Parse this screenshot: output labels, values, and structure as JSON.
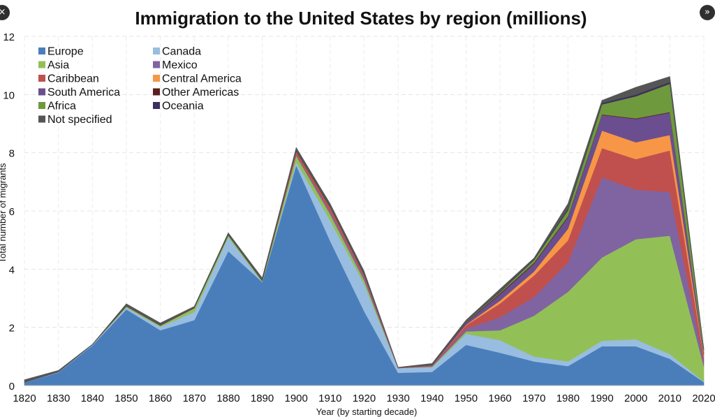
{
  "ui": {
    "close_glyph": "×",
    "next_glyph": "»"
  },
  "chart_data": {
    "type": "area",
    "stacked": true,
    "title": "Immigration to the United States by region (millions)",
    "xlabel": "Year (by starting decade)",
    "ylabel": "Total number of migrants",
    "ylim": [
      0,
      12
    ],
    "yticks": [
      0,
      2,
      4,
      6,
      8,
      10,
      12
    ],
    "grid": true,
    "legend_position": "top-left",
    "x": [
      1820,
      1830,
      1840,
      1850,
      1860,
      1870,
      1880,
      1890,
      1900,
      1910,
      1920,
      1930,
      1940,
      1950,
      1960,
      1970,
      1980,
      1990,
      2000,
      2010,
      2020
    ],
    "series": [
      {
        "name": "Europe",
        "color": "#4a7ebb",
        "values": [
          0.1,
          0.45,
          1.38,
          2.62,
          1.9,
          2.25,
          4.62,
          3.56,
          7.57,
          4.97,
          2.56,
          0.44,
          0.47,
          1.4,
          1.13,
          0.83,
          0.67,
          1.35,
          1.35,
          0.92,
          0.12
        ]
      },
      {
        "name": "Canada",
        "color": "#98bde0",
        "values": [
          0.01,
          0.02,
          0.03,
          0.06,
          0.12,
          0.28,
          0.48,
          0.0,
          0.12,
          0.71,
          0.93,
          0.16,
          0.16,
          0.38,
          0.43,
          0.17,
          0.16,
          0.19,
          0.24,
          0.16,
          0.02
        ]
      },
      {
        "name": "Asia",
        "color": "#92c057",
        "values": [
          0.0,
          0.0,
          0.0,
          0.04,
          0.04,
          0.13,
          0.07,
          0.04,
          0.21,
          0.21,
          0.13,
          0.0,
          0.02,
          0.08,
          0.34,
          1.4,
          2.39,
          2.86,
          3.44,
          4.07,
          0.52
        ]
      },
      {
        "name": "Mexico",
        "color": "#8064a2",
        "values": [
          0.0,
          0.0,
          0.0,
          0.0,
          0.0,
          0.0,
          0.0,
          0.0,
          0.03,
          0.09,
          0.08,
          0.0,
          0.02,
          0.09,
          0.45,
          0.64,
          1.01,
          2.76,
          1.7,
          1.5,
          0.14
        ]
      },
      {
        "name": "Caribbean",
        "color": "#c0504d",
        "values": [
          0.0,
          0.0,
          0.0,
          0.01,
          0.01,
          0.01,
          0.0,
          0.0,
          0.1,
          0.12,
          0.07,
          0.01,
          0.02,
          0.12,
          0.47,
          0.74,
          0.76,
          1.0,
          1.05,
          1.43,
          0.18
        ]
      },
      {
        "name": "Central America",
        "color": "#f79646",
        "values": [
          0.0,
          0.0,
          0.0,
          0.0,
          0.0,
          0.0,
          0.0,
          0.0,
          0.01,
          0.01,
          0.01,
          0.0,
          0.0,
          0.02,
          0.1,
          0.14,
          0.4,
          0.6,
          0.58,
          0.53,
          0.05
        ]
      },
      {
        "name": "South America",
        "color": "#6b4e8f",
        "values": [
          0.0,
          0.0,
          0.0,
          0.0,
          0.0,
          0.0,
          0.0,
          0.0,
          0.01,
          0.01,
          0.04,
          0.01,
          0.01,
          0.08,
          0.22,
          0.27,
          0.4,
          0.54,
          0.8,
          0.77,
          0.09
        ]
      },
      {
        "name": "Other Americas",
        "color": "#5b1e1e",
        "values": [
          0.0,
          0.0,
          0.0,
          0.0,
          0.0,
          0.0,
          0.0,
          0.0,
          0.01,
          0.01,
          0.01,
          0.0,
          0.0,
          0.02,
          0.03,
          0.03,
          0.03,
          0.02,
          0.02,
          0.02,
          0.0
        ]
      },
      {
        "name": "Africa",
        "color": "#6e9a3d",
        "values": [
          0.0,
          0.0,
          0.0,
          0.0,
          0.0,
          0.0,
          0.0,
          0.0,
          0.0,
          0.01,
          0.01,
          0.0,
          0.0,
          0.02,
          0.04,
          0.1,
          0.2,
          0.34,
          0.76,
          0.97,
          0.11
        ]
      },
      {
        "name": "Oceania",
        "color": "#3d2f5f",
        "values": [
          0.0,
          0.0,
          0.0,
          0.0,
          0.01,
          0.01,
          0.01,
          0.0,
          0.01,
          0.01,
          0.01,
          0.0,
          0.0,
          0.01,
          0.02,
          0.03,
          0.04,
          0.05,
          0.06,
          0.06,
          0.01
        ]
      },
      {
        "name": "Not specified",
        "color": "#555555",
        "values": [
          0.09,
          0.05,
          0.01,
          0.08,
          0.07,
          0.04,
          0.07,
          0.1,
          0.11,
          0.1,
          0.08,
          0.01,
          0.06,
          0.03,
          0.09,
          0.03,
          0.19,
          0.09,
          0.25,
          0.19,
          0.02
        ]
      }
    ]
  }
}
